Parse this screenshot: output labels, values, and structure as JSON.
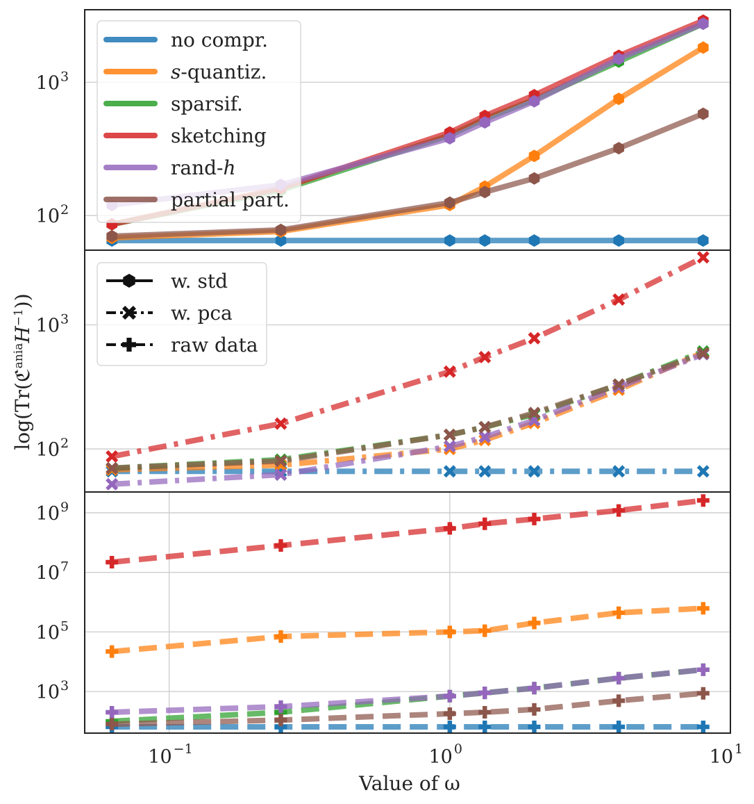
{
  "ylabel": {
    "prefix": "log(Tr(",
    "symbol": "ℭ",
    "superscript": "ania",
    "suffix": "H",
    "inverse": "−1",
    "close": "))"
  },
  "xlabel": "Value of ω",
  "x_ticks": [
    {
      "base": "10",
      "exp": "−1"
    },
    {
      "base": "10",
      "exp": "0"
    },
    {
      "base": "10",
      "exp": "1"
    }
  ],
  "legend_top": [
    {
      "label": "no compr.",
      "italic_prefix": "",
      "color": "#1f77b4"
    },
    {
      "label": "-quantiz.",
      "italic_prefix": "s",
      "color": "#ff7f0e"
    },
    {
      "label": "sparsif.",
      "italic_prefix": "",
      "color": "#2ca02c"
    },
    {
      "label": "sketching",
      "italic_prefix": "",
      "color": "#d62728"
    },
    {
      "label": "rand-",
      "italic_suffix": "h",
      "italic_prefix": "",
      "color": "#9467bd"
    },
    {
      "label": "partial part.",
      "italic_prefix": "",
      "color": "#8c564b"
    }
  ],
  "legend_mid": [
    {
      "label": "w. std",
      "marker": "hexagon",
      "dash": "solid"
    },
    {
      "label": "w. pca",
      "marker": "x",
      "dash": "dashdot"
    },
    {
      "label": "raw data",
      "marker": "plus",
      "dash": "dashed"
    }
  ],
  "chart_data": [
    {
      "type": "line",
      "panel": "w. std",
      "x_scale": "log",
      "y_scale": "log",
      "xlim": [
        0.05,
        10
      ],
      "ylim": [
        55,
        3500
      ],
      "y_ticks": [
        {
          "value": 100,
          "base": "10",
          "exp": "2"
        },
        {
          "value": 1000,
          "base": "10",
          "exp": "3"
        }
      ],
      "grid": true,
      "legend_position": "top-left",
      "x": [
        0.0625,
        0.25,
        1,
        1.333,
        2,
        4,
        8
      ],
      "series": [
        {
          "name": "no compr.",
          "color": "#1f77b4",
          "values": [
            65,
            65,
            65,
            65,
            65,
            65,
            65
          ]
        },
        {
          "name": "s-quantiz.",
          "color": "#ff7f0e",
          "values": [
            68,
            76,
            120,
            165,
            280,
            750,
            1820
          ]
        },
        {
          "name": "sparsif.",
          "color": "#2ca02c",
          "values": [
            86,
            155,
            400,
            530,
            740,
            1430,
            2750
          ]
        },
        {
          "name": "sketching",
          "color": "#d62728",
          "values": [
            86,
            160,
            420,
            560,
            800,
            1580,
            2900
          ]
        },
        {
          "name": "rand-h",
          "color": "#9467bd",
          "values": [
            120,
            170,
            380,
            500,
            720,
            1500,
            2750
          ]
        },
        {
          "name": "partial part.",
          "color": "#8c564b",
          "values": [
            70,
            78,
            125,
            150,
            190,
            320,
            580
          ]
        }
      ]
    },
    {
      "type": "line",
      "panel": "w. pca",
      "x_scale": "log",
      "y_scale": "log",
      "xlim": [
        0.05,
        10
      ],
      "ylim": [
        45,
        4000
      ],
      "y_ticks": [
        {
          "value": 100,
          "base": "10",
          "exp": "2"
        },
        {
          "value": 1000,
          "base": "10",
          "exp": "3"
        }
      ],
      "grid": true,
      "legend_position": "top-left",
      "x": [
        0.0625,
        0.25,
        1,
        1.333,
        2,
        4,
        8
      ],
      "series": [
        {
          "name": "no compr.",
          "color": "#1f77b4",
          "values": [
            66,
            66,
            66,
            66,
            66,
            66,
            66
          ]
        },
        {
          "name": "s-quantiz.",
          "color": "#ff7f0e",
          "values": [
            68,
            74,
            100,
            118,
            162,
            300,
            600
          ]
        },
        {
          "name": "sparsif.",
          "color": "#2ca02c",
          "values": [
            70,
            82,
            130,
            150,
            190,
            330,
            610
          ]
        },
        {
          "name": "sketching",
          "color": "#d62728",
          "values": [
            87,
            160,
            420,
            550,
            780,
            1600,
            3500
          ]
        },
        {
          "name": "rand-h",
          "color": "#9467bd",
          "values": [
            52,
            62,
            105,
            125,
            170,
            315,
            580
          ]
        },
        {
          "name": "partial part.",
          "color": "#8c564b",
          "values": [
            70,
            80,
            130,
            150,
            195,
            330,
            590
          ]
        }
      ]
    },
    {
      "type": "line",
      "panel": "raw data",
      "x_scale": "log",
      "y_scale": "log",
      "xlim": [
        0.05,
        10
      ],
      "ylim": [
        40,
        5000000000
      ],
      "y_ticks": [
        {
          "value": 1000,
          "base": "10",
          "exp": "3"
        },
        {
          "value": 100000,
          "base": "10",
          "exp": "5"
        },
        {
          "value": 10000000,
          "base": "10",
          "exp": "7"
        },
        {
          "value": 1000000000,
          "base": "10",
          "exp": "9"
        }
      ],
      "grid": true,
      "x": [
        0.0625,
        0.25,
        1,
        1.333,
        2,
        4,
        8
      ],
      "series": [
        {
          "name": "no compr.",
          "color": "#1f77b4",
          "values": [
            65,
            65,
            65,
            65,
            65,
            65,
            65
          ]
        },
        {
          "name": "s-quantiz.",
          "color": "#ff7f0e",
          "values": [
            22000,
            70000,
            100000,
            110000,
            200000,
            440000,
            620000
          ]
        },
        {
          "name": "sparsif.",
          "color": "#2ca02c",
          "values": [
            100,
            200,
            700,
            900,
            1300,
            2800,
            5400
          ]
        },
        {
          "name": "sketching",
          "color": "#d62728",
          "values": [
            22000000,
            80000000,
            300000000,
            430000000,
            620000000,
            1200000000,
            2600000000
          ]
        },
        {
          "name": "rand-h",
          "color": "#9467bd",
          "values": [
            200,
            310,
            700,
            900,
            1300,
            2800,
            5400
          ]
        },
        {
          "name": "partial part.",
          "color": "#8c564b",
          "values": [
            80,
            110,
            180,
            200,
            250,
            490,
            870
          ]
        }
      ]
    }
  ]
}
